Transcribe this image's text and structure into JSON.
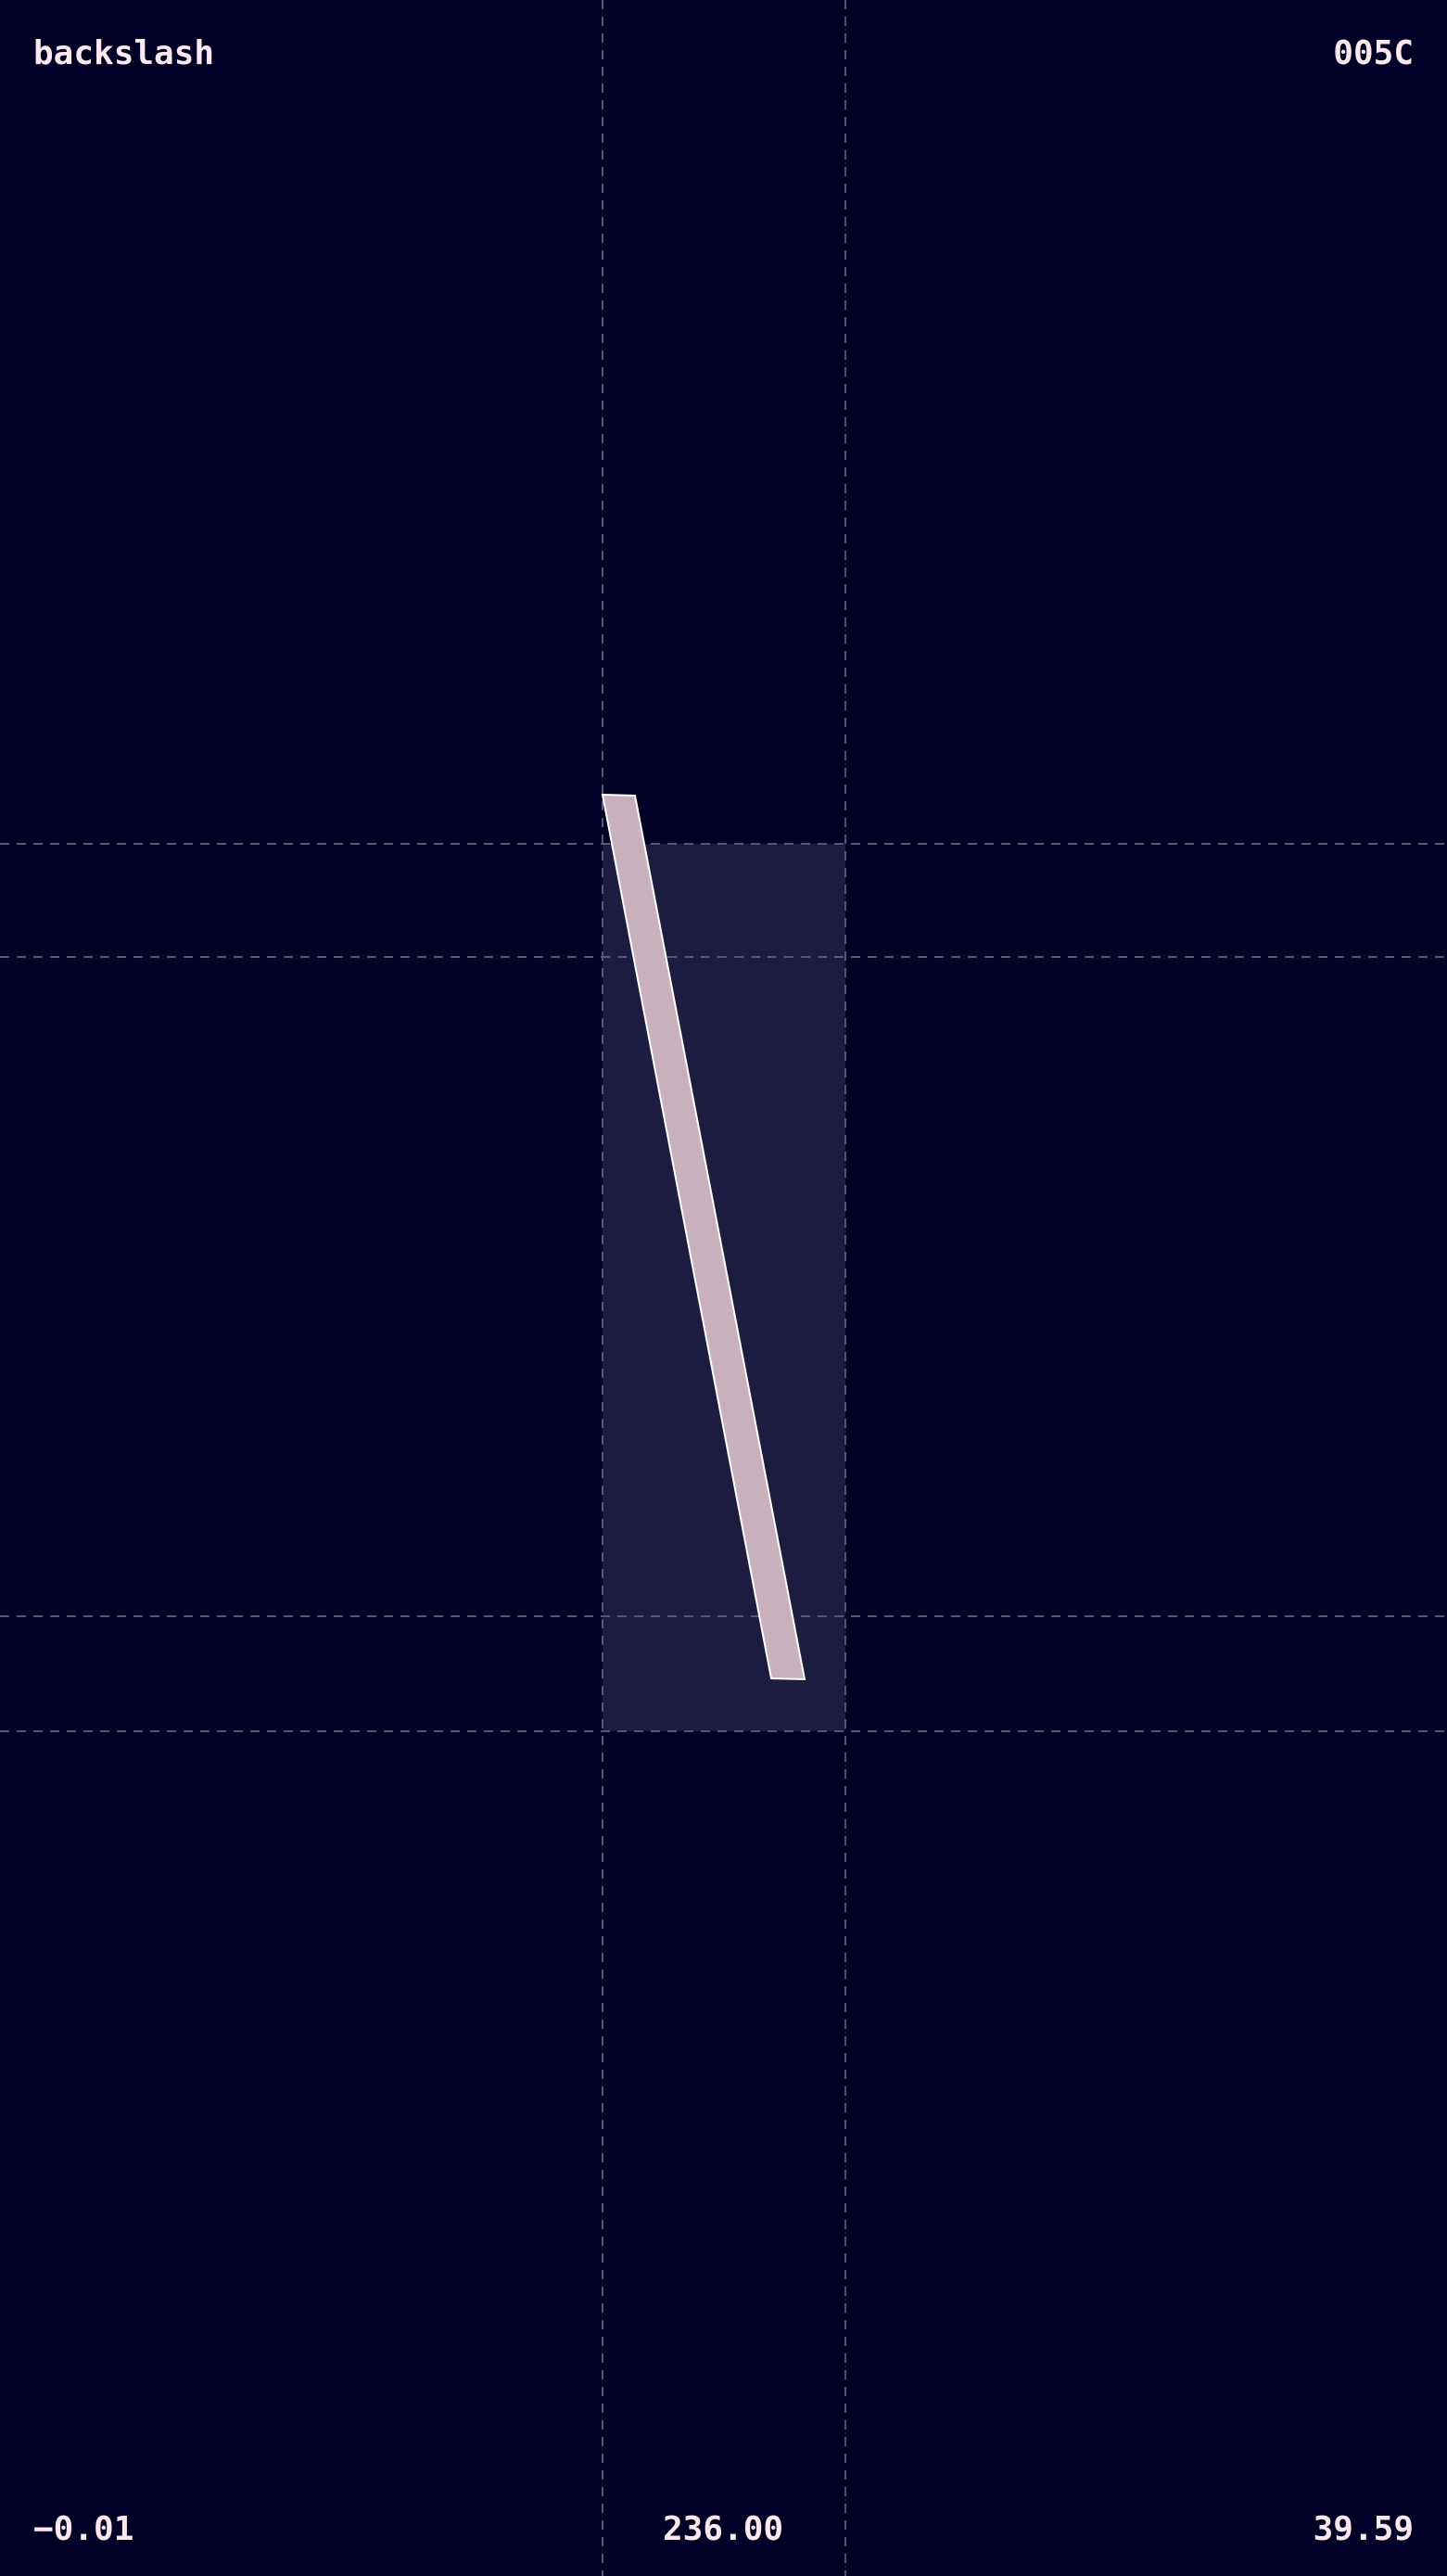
{
  "glyph": {
    "name": "backslash",
    "codepoint": "005C"
  },
  "metrics": {
    "left_bearing": "−0.01",
    "advance_width": "236.00",
    "right_bearing": "39.59"
  },
  "colors": {
    "background": "#000026",
    "guide_line": "#5a5478",
    "bbox_fill": "#1c1c40",
    "glyph_fill": "#c8b0bc",
    "glyph_stroke": "#ffffff",
    "text": "#fde8ee"
  }
}
